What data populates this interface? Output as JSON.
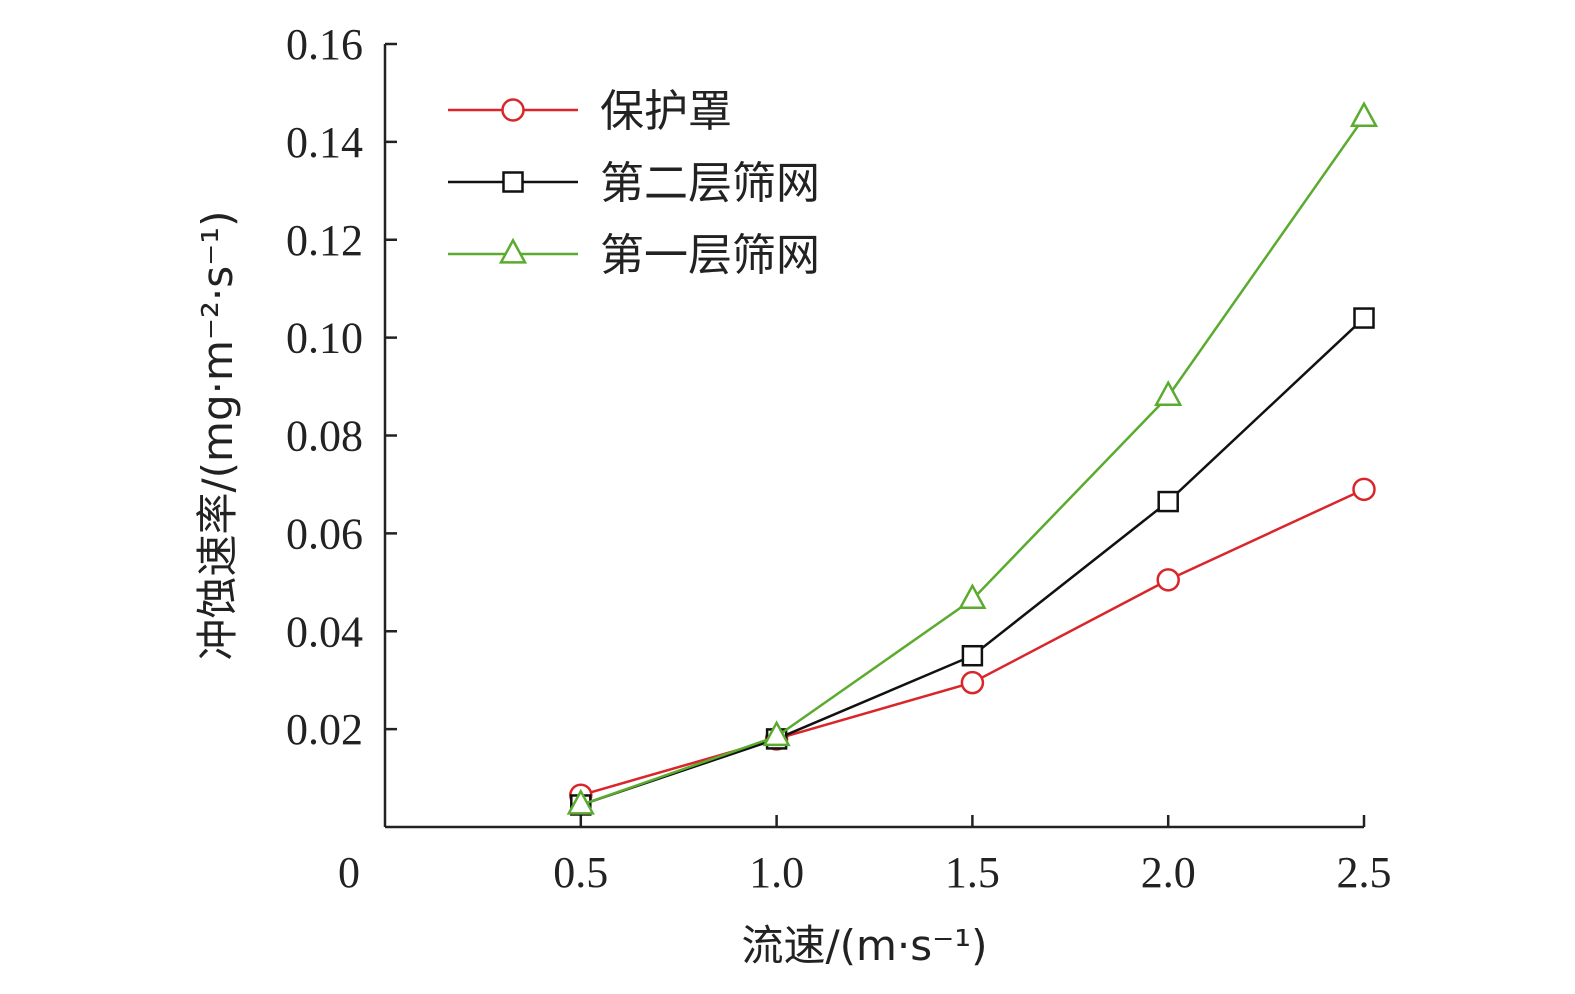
{
  "chart_data": {
    "type": "line",
    "x": [
      0.5,
      1.0,
      1.5,
      2.0,
      2.5
    ],
    "x_tick_labels": [
      "0.5",
      "1.0",
      "1.5",
      "2.0",
      "2.5"
    ],
    "xlim": [
      0,
      2.5
    ],
    "ylim": [
      0,
      0.16
    ],
    "y_ticks": [
      0.02,
      0.04,
      0.06,
      0.08,
      0.1,
      0.12,
      0.14,
      0.16
    ],
    "y_tick_labels": [
      "0.02",
      "0.04",
      "0.06",
      "0.08",
      "0.10",
      "0.12",
      "0.14",
      "0.16"
    ],
    "origin_label": "0",
    "xlabel": "流速/(m·s⁻¹)",
    "ylabel": "冲蚀速率/(mg·m⁻²·s⁻¹)",
    "grid": false,
    "legend_position": "top-left",
    "series": [
      {
        "name": "保护罩",
        "color": "#d9262b",
        "marker": "circle",
        "values": [
          0.0065,
          0.018,
          0.0295,
          0.0505,
          0.069
        ]
      },
      {
        "name": "第二层筛网",
        "color": "#111111",
        "marker": "square",
        "values": [
          0.0045,
          0.018,
          0.035,
          0.0665,
          0.104
        ]
      },
      {
        "name": "第一层筛网",
        "color": "#5aab2e",
        "marker": "triangle",
        "values": [
          0.0045,
          0.0185,
          0.0465,
          0.088,
          0.145
        ]
      }
    ]
  }
}
